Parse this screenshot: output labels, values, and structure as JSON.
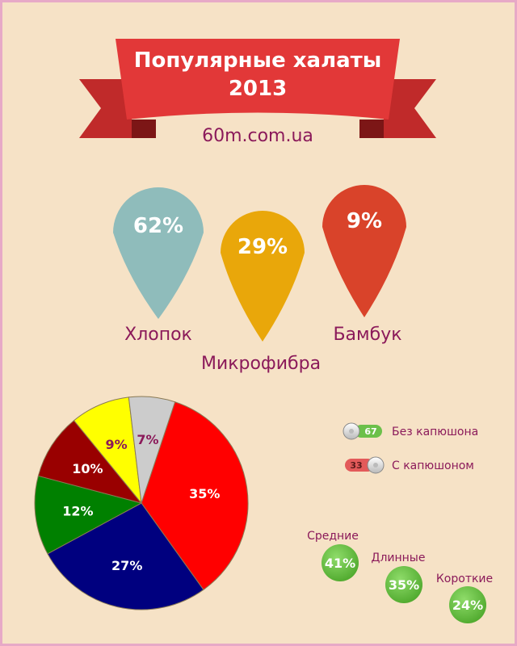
{
  "header": {
    "title_line1": "Популярные халаты",
    "title_line2": "2013",
    "site": "60m.com.ua"
  },
  "chart_data": [
    {
      "type": "bar",
      "chart_kind": "pin-markers",
      "categories": [
        "Хлопок",
        "Микрофибра",
        "Бамбук"
      ],
      "values": [
        62,
        29,
        9
      ],
      "value_labels": [
        "62%",
        "29%",
        "9%"
      ],
      "colors": [
        "#8fbcbb",
        "#e9a70a",
        "#d9432a"
      ]
    },
    {
      "type": "pie",
      "values": [
        35,
        27,
        12,
        10,
        9,
        7
      ],
      "value_labels": [
        "35%",
        "27%",
        "12%",
        "10%",
        "9%",
        "7%"
      ],
      "colors": [
        "#ff0000",
        "#00007f",
        "#008000",
        "#990000",
        "#ffff00",
        "#cccccc"
      ],
      "label_colors": [
        "#ffffff",
        "#ffffff",
        "#ffffff",
        "#ffffff",
        "#8b1a5a",
        "#8b1a5a"
      ],
      "legend": "none"
    },
    {
      "type": "bar",
      "chart_kind": "toggle-switches",
      "categories": [
        "Без капюшона",
        "С капюшоном"
      ],
      "values": [
        67,
        33
      ],
      "colors": [
        "#6cc04a",
        "#e35a5a"
      ]
    },
    {
      "type": "scatter",
      "chart_kind": "bubbles",
      "categories": [
        "Средние",
        "Длинные",
        "Короткие"
      ],
      "values": [
        41,
        35,
        24
      ],
      "value_labels": [
        "41%",
        "35%",
        "24%"
      ],
      "colors": [
        "#6cc04a"
      ]
    }
  ]
}
